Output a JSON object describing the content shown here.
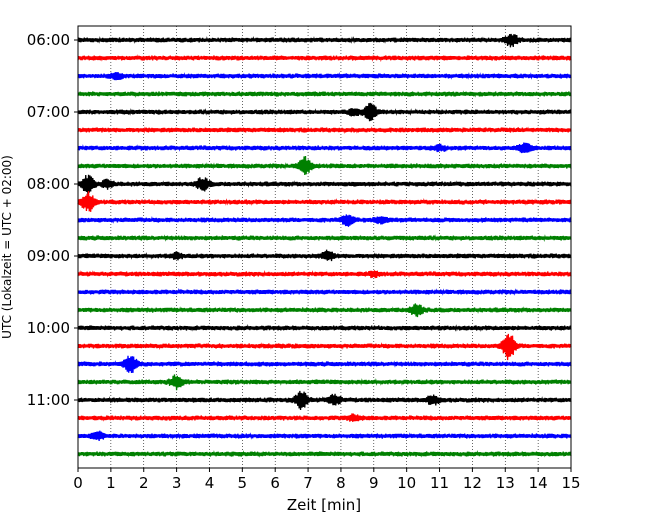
{
  "chart_data": {
    "type": "line",
    "title": "",
    "xlabel": "Zeit  [min]",
    "ylabel": "UTC (Lokalzeit = UTC + 02:00)",
    "xlim": [
      0,
      15
    ],
    "x_ticks": [
      0,
      1,
      2,
      3,
      4,
      5,
      6,
      7,
      8,
      9,
      10,
      11,
      12,
      13,
      14,
      15
    ],
    "y_tick_labels": [
      "06:00",
      "07:00",
      "08:00",
      "09:00",
      "10:00",
      "11:00"
    ],
    "grid": "vertical-dotted",
    "colors": [
      "#000000",
      "#ff0000",
      "#0000ff",
      "#008000"
    ],
    "series": [
      {
        "time": "06:00",
        "color": "#000000",
        "events": [
          {
            "x": 13.2,
            "amp": 1.2
          }
        ]
      },
      {
        "time": "06:15",
        "color": "#ff0000",
        "events": []
      },
      {
        "time": "06:30",
        "color": "#0000ff",
        "events": [
          {
            "x": 1.2,
            "amp": 0.5
          }
        ]
      },
      {
        "time": "06:45",
        "color": "#008000",
        "events": []
      },
      {
        "time": "07:00",
        "color": "#000000",
        "events": [
          {
            "x": 8.9,
            "amp": 1.6
          },
          {
            "x": 8.4,
            "amp": 0.5
          }
        ]
      },
      {
        "time": "07:15",
        "color": "#ff0000",
        "events": []
      },
      {
        "time": "07:30",
        "color": "#0000ff",
        "events": [
          {
            "x": 13.6,
            "amp": 0.8
          },
          {
            "x": 11.0,
            "amp": 0.5
          }
        ]
      },
      {
        "time": "07:45",
        "color": "#008000",
        "events": [
          {
            "x": 6.9,
            "amp": 1.6
          }
        ]
      },
      {
        "time": "08:00",
        "color": "#000000",
        "events": [
          {
            "x": 0.3,
            "amp": 1.6
          },
          {
            "x": 0.9,
            "amp": 0.7
          },
          {
            "x": 3.8,
            "amp": 1.2
          }
        ]
      },
      {
        "time": "08:15",
        "color": "#ff0000",
        "events": [
          {
            "x": 0.3,
            "amp": 1.9
          }
        ]
      },
      {
        "time": "08:30",
        "color": "#0000ff",
        "events": [
          {
            "x": 8.2,
            "amp": 0.9
          },
          {
            "x": 9.2,
            "amp": 0.6
          }
        ]
      },
      {
        "time": "08:45",
        "color": "#008000",
        "events": []
      },
      {
        "time": "09:00",
        "color": "#000000",
        "events": [
          {
            "x": 7.6,
            "amp": 0.8
          },
          {
            "x": 3.0,
            "amp": 0.5
          }
        ]
      },
      {
        "time": "09:15",
        "color": "#ff0000",
        "events": [
          {
            "x": 9.0,
            "amp": 0.4
          }
        ]
      },
      {
        "time": "09:30",
        "color": "#0000ff",
        "events": []
      },
      {
        "time": "09:45",
        "color": "#008000",
        "events": [
          {
            "x": 10.3,
            "amp": 1.1
          }
        ]
      },
      {
        "time": "10:00",
        "color": "#000000",
        "events": []
      },
      {
        "time": "10:15",
        "color": "#ff0000",
        "events": [
          {
            "x": 13.1,
            "amp": 2.6
          }
        ]
      },
      {
        "time": "10:30",
        "color": "#0000ff",
        "events": [
          {
            "x": 1.6,
            "amp": 1.6
          }
        ]
      },
      {
        "time": "10:45",
        "color": "#008000",
        "events": [
          {
            "x": 3.0,
            "amp": 1.2
          }
        ]
      },
      {
        "time": "11:00",
        "color": "#000000",
        "events": [
          {
            "x": 6.8,
            "amp": 1.7
          },
          {
            "x": 7.8,
            "amp": 1.0
          },
          {
            "x": 10.8,
            "amp": 0.8
          }
        ]
      },
      {
        "time": "11:15",
        "color": "#ff0000",
        "events": [
          {
            "x": 8.4,
            "amp": 0.5
          }
        ]
      },
      {
        "time": "11:30",
        "color": "#0000ff",
        "events": [
          {
            "x": 0.6,
            "amp": 0.7
          }
        ]
      },
      {
        "time": "11:45",
        "color": "#008000",
        "events": []
      }
    ]
  }
}
